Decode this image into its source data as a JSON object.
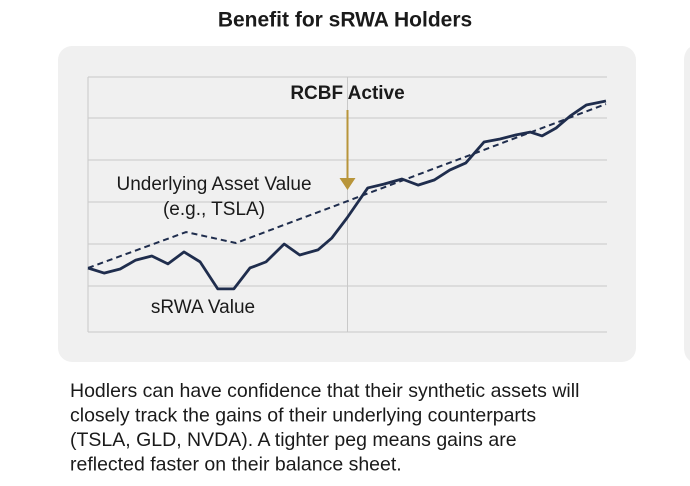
{
  "chart_data": {
    "type": "line",
    "title": "Benefit for sRWA Holders",
    "xlim": [
      0,
      100
    ],
    "ylim": [
      0,
      100
    ],
    "annotation": {
      "text": "RCBF Active",
      "x": 50,
      "color": "#b8953a"
    },
    "series": [
      {
        "name": "sRWA Value",
        "color": "#1f2d4d",
        "style": "solid",
        "x": [
          0,
          3.1,
          6.2,
          9.2,
          12.3,
          15.4,
          18.5,
          21.6,
          25,
          28.1,
          31.2,
          34.3,
          37.8,
          40.8,
          44.3,
          47,
          49.9,
          53.9,
          57,
          60.5,
          63.6,
          66.7,
          69.7,
          72.8,
          76.3,
          79.4,
          82.5,
          85.2,
          87.5,
          90.2,
          92.9,
          96,
          99.8
        ],
        "values": [
          25.1,
          23.1,
          24.7,
          28.2,
          29.8,
          26.7,
          31.4,
          27.5,
          16.9,
          16.9,
          25.1,
          27.5,
          34.5,
          30.2,
          32.2,
          36.9,
          44.7,
          56.5,
          58,
          60,
          57.6,
          59.6,
          63.5,
          66.3,
          74.5,
          75.7,
          77.3,
          78.4,
          76.9,
          80,
          84.7,
          89,
          90.6
        ]
      },
      {
        "name": "Underlying Asset Value",
        "note": "(e.g., TSLA)",
        "color": "#1f2d4d",
        "style": "dashed",
        "x": [
          0,
          18.9,
          28.5,
          99.8
        ],
        "values": [
          25.1,
          39.2,
          34.9,
          89.4
        ]
      }
    ]
  },
  "description": [
    "Hodlers can have confidence that their synthetic assets will",
    "closely track the gains of their underlying counterparts",
    "(TSLA, GLD, NVDA). A tighter peg means gains are",
    "reflected faster on their balance sheet."
  ]
}
